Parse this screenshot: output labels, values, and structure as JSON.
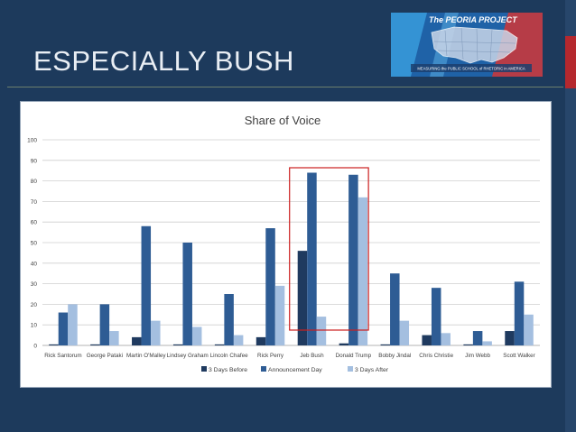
{
  "slide": {
    "title": "ESPECIALLY BUSH"
  },
  "banner": {
    "title": "The PEORIA PROJECT",
    "subtitle": "MEASURING the PUBLIC SCHOOL of RHETORIC in AMERICA",
    "icon": "map-usa-icon"
  },
  "chart_data": {
    "type": "bar",
    "title": "Share of Voice",
    "xlabel": "",
    "ylabel": "",
    "ylim": [
      0,
      100
    ],
    "yticks": [
      "0",
      "10",
      "20",
      "30",
      "40",
      "50",
      "60",
      "70",
      "80",
      "90",
      "100"
    ],
    "grid": true,
    "legend": "bottom",
    "categories": [
      "Rick Santorum",
      "George Pataki",
      "Martin O'Malley",
      "Lindsey Graham",
      "Lincoln Chafee",
      "Rick Perry",
      "Jeb Bush",
      "Donald Trump",
      "Bobby Jindal",
      "Chris Christie",
      "Jim Webb",
      "Scott Walker"
    ],
    "series": [
      {
        "name": "3 Days Before",
        "color": "#1f3a5f",
        "values": [
          0.5,
          0.5,
          4,
          0.5,
          0.5,
          4,
          46,
          1,
          0.5,
          5,
          0.5,
          7
        ]
      },
      {
        "name": "Announcement Day",
        "color": "#2e5c94",
        "values": [
          16,
          20,
          58,
          50,
          25,
          57,
          84,
          83,
          35,
          28,
          7,
          31
        ]
      },
      {
        "name": "3 Days After",
        "color": "#a4bfe0",
        "values": [
          20,
          7,
          12,
          9,
          5,
          29,
          14,
          72,
          12,
          6,
          2,
          15
        ]
      }
    ],
    "highlight": {
      "categories": [
        "Jeb Bush",
        "Donald Trump"
      ],
      "color": "#cc1f1f"
    }
  }
}
